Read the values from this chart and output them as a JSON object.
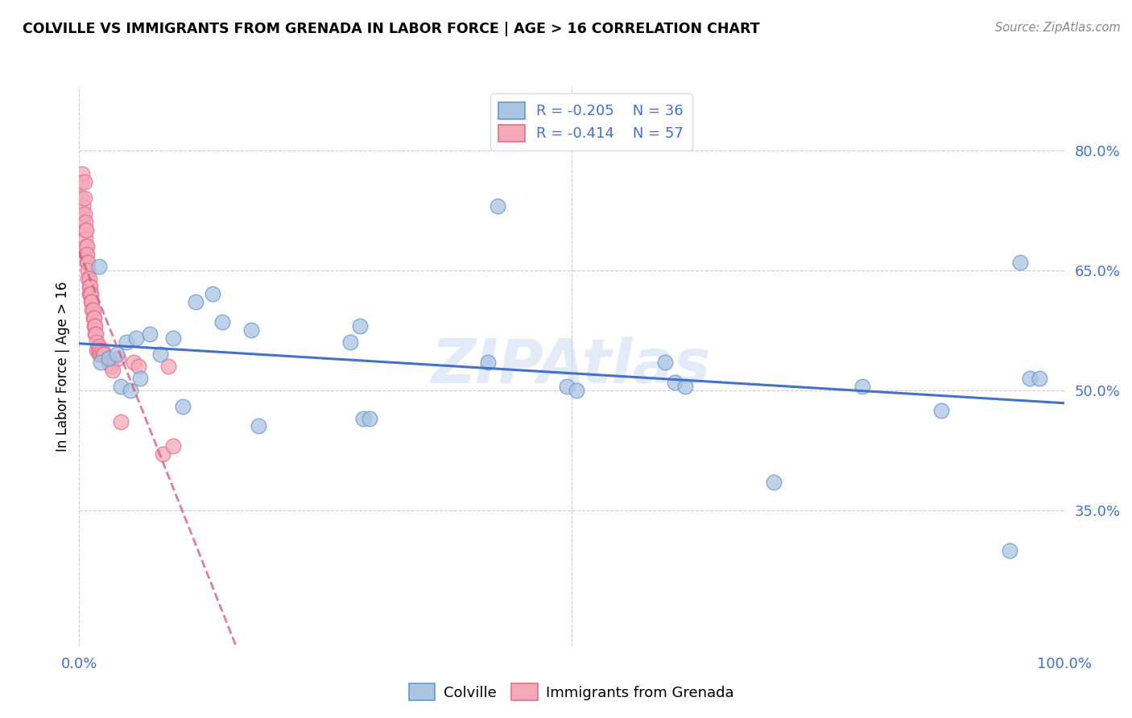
{
  "title": "COLVILLE VS IMMIGRANTS FROM GRENADA IN LABOR FORCE | AGE > 16 CORRELATION CHART",
  "source": "Source: ZipAtlas.com",
  "ylabel": "In Labor Force | Age > 16",
  "xlim": [
    0.0,
    1.0
  ],
  "ylim": [
    0.18,
    0.88
  ],
  "yticks": [
    0.35,
    0.5,
    0.65,
    0.8
  ],
  "ytick_labels": [
    "35.0%",
    "50.0%",
    "65.0%",
    "80.0%"
  ],
  "colville_R": "-0.205",
  "colville_N": "36",
  "grenada_R": "-0.414",
  "grenada_N": "57",
  "colville_color": "#aac4e2",
  "grenada_color": "#f5a8b8",
  "trend_blue": "#4472c4",
  "trend_pink": "#d4607a",
  "watermark": "ZIPAtlas",
  "colville_x": [
    0.02,
    0.022,
    0.03,
    0.038,
    0.042,
    0.048,
    0.052,
    0.058,
    0.062,
    0.072,
    0.082,
    0.095,
    0.105,
    0.118,
    0.135,
    0.145,
    0.175,
    0.182,
    0.275,
    0.285,
    0.288,
    0.295,
    0.415,
    0.425,
    0.495,
    0.505,
    0.595,
    0.605,
    0.615,
    0.705,
    0.795,
    0.875,
    0.945,
    0.955,
    0.965,
    0.975
  ],
  "colville_y": [
    0.655,
    0.535,
    0.54,
    0.545,
    0.505,
    0.56,
    0.5,
    0.565,
    0.515,
    0.57,
    0.545,
    0.565,
    0.48,
    0.61,
    0.62,
    0.585,
    0.575,
    0.455,
    0.56,
    0.58,
    0.465,
    0.465,
    0.535,
    0.73,
    0.505,
    0.5,
    0.535,
    0.51,
    0.505,
    0.385,
    0.505,
    0.475,
    0.3,
    0.66,
    0.515,
    0.515
  ],
  "grenada_x": [
    0.002,
    0.002,
    0.003,
    0.003,
    0.004,
    0.004,
    0.005,
    0.005,
    0.005,
    0.006,
    0.006,
    0.006,
    0.007,
    0.007,
    0.007,
    0.008,
    0.008,
    0.008,
    0.009,
    0.009,
    0.009,
    0.01,
    0.01,
    0.01,
    0.011,
    0.011,
    0.012,
    0.012,
    0.013,
    0.013,
    0.014,
    0.014,
    0.015,
    0.015,
    0.016,
    0.016,
    0.017,
    0.018,
    0.018,
    0.019,
    0.02,
    0.02,
    0.021,
    0.022,
    0.023,
    0.024,
    0.025,
    0.03,
    0.032,
    0.034,
    0.04,
    0.042,
    0.055,
    0.06,
    0.085,
    0.09,
    0.095
  ],
  "grenada_y": [
    0.76,
    0.74,
    0.72,
    0.77,
    0.73,
    0.71,
    0.76,
    0.74,
    0.72,
    0.71,
    0.7,
    0.69,
    0.7,
    0.68,
    0.67,
    0.68,
    0.67,
    0.66,
    0.66,
    0.65,
    0.64,
    0.64,
    0.63,
    0.62,
    0.63,
    0.62,
    0.62,
    0.61,
    0.61,
    0.6,
    0.6,
    0.59,
    0.59,
    0.58,
    0.58,
    0.57,
    0.57,
    0.56,
    0.55,
    0.55,
    0.555,
    0.545,
    0.55,
    0.545,
    0.55,
    0.545,
    0.545,
    0.535,
    0.53,
    0.525,
    0.54,
    0.46,
    0.535,
    0.53,
    0.42,
    0.53,
    0.43
  ]
}
